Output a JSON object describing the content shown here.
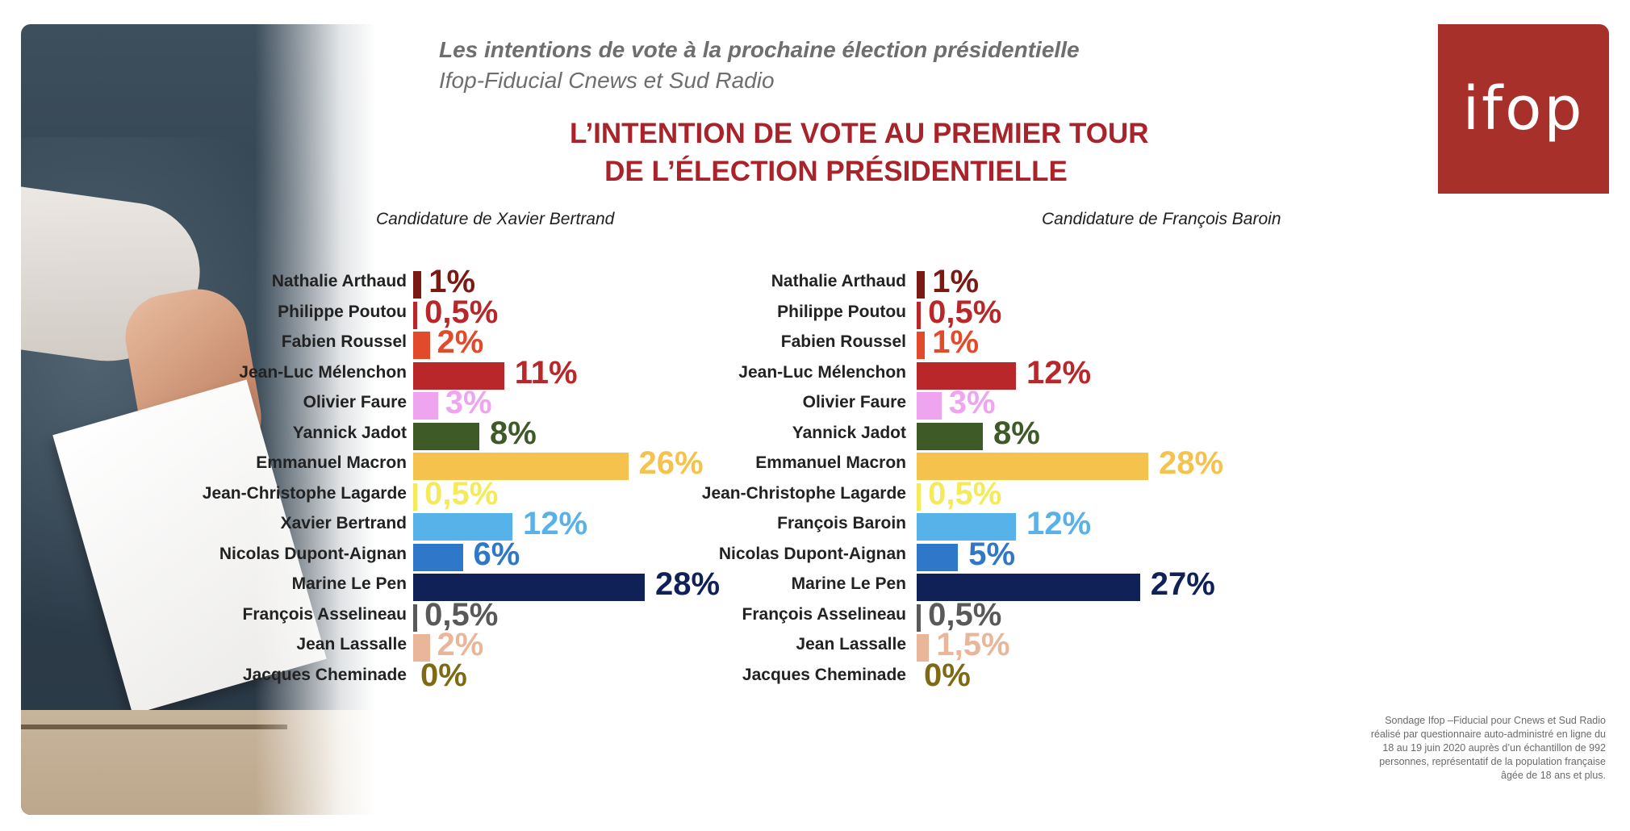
{
  "header": {
    "line1": "Les intentions de vote à la prochaine élection présidentielle",
    "line2": "Ifop-Fiducial Cnews et Sud Radio"
  },
  "title": {
    "line1": "L’INTENTION DE VOTE AU PREMIER TOUR",
    "line2": "DE L’ÉLECTION PRÉSIDENTIELLE"
  },
  "logo": {
    "text": "ifop"
  },
  "footnote": "Sondage Ifop –Fiducial pour Cnews et Sud Radio réalisé par questionnaire auto-administré en ligne du 18 au 19 juin 2020 auprès d’un échantillon de 992 personnes, représentatif de la population française âgée de 18 ans et plus.",
  "colors": {
    "brand": "#a8302b",
    "title": "#a8232a"
  },
  "chart_data": [
    {
      "type": "bar",
      "orientation": "horizontal",
      "title": "Candidature de Xavier Bertrand",
      "unit": "%",
      "categories": [
        "Nathalie Arthaud",
        "Philippe Poutou",
        "Fabien Roussel",
        "Jean-Luc Mélenchon",
        "Olivier Faure",
        "Yannick Jadot",
        "Emmanuel Macron",
        "Jean-Christophe Lagarde",
        "Xavier Bertrand",
        "Nicolas Dupont-Aignan",
        "Marine Le Pen",
        "François Asselineau",
        "Jean Lassalle",
        "Jacques Cheminade"
      ],
      "values": [
        1,
        0.5,
        2,
        11,
        3,
        8,
        26,
        0.5,
        12,
        6,
        28,
        0.5,
        2,
        0
      ],
      "labels": [
        "1%",
        "0,5%",
        "2%",
        "11%",
        "3%",
        "8%",
        "26%",
        "0,5%",
        "12%",
        "6%",
        "28%",
        "0,5%",
        "2%",
        "0%"
      ],
      "colors": [
        "#7a1a12",
        "#b9272a",
        "#e14a2b",
        "#b9272a",
        "#eea4ee",
        "#3e5a26",
        "#f4c24d",
        "#f4ea5c",
        "#57b2ea",
        "#2f78c9",
        "#0f2157",
        "#595959",
        "#eab69a",
        "#7e6a13"
      ],
      "xlim": [
        0,
        28
      ]
    },
    {
      "type": "bar",
      "orientation": "horizontal",
      "title": "Candidature de François Baroin",
      "unit": "%",
      "categories": [
        "Nathalie Arthaud",
        "Philippe Poutou",
        "Fabien Roussel",
        "Jean-Luc Mélenchon",
        "Olivier Faure",
        "Yannick Jadot",
        "Emmanuel Macron",
        "Jean-Christophe Lagarde",
        "François Baroin",
        "Nicolas Dupont-Aignan",
        "Marine Le Pen",
        "François Asselineau",
        "Jean Lassalle",
        "Jacques Cheminade"
      ],
      "values": [
        1,
        0.5,
        1,
        12,
        3,
        8,
        28,
        0.5,
        12,
        5,
        27,
        0.5,
        1.5,
        0
      ],
      "labels": [
        "1%",
        "0,5%",
        "1%",
        "12%",
        "3%",
        "8%",
        "28%",
        "0,5%",
        "12%",
        "5%",
        "27%",
        "0,5%",
        "1,5%",
        "0%"
      ],
      "colors": [
        "#7a1a12",
        "#b9272a",
        "#e14a2b",
        "#b9272a",
        "#eea4ee",
        "#3e5a26",
        "#f4c24d",
        "#f4ea5c",
        "#57b2ea",
        "#2f78c9",
        "#0f2157",
        "#595959",
        "#eab69a",
        "#7e6a13"
      ],
      "xlim": [
        0,
        28
      ]
    }
  ]
}
